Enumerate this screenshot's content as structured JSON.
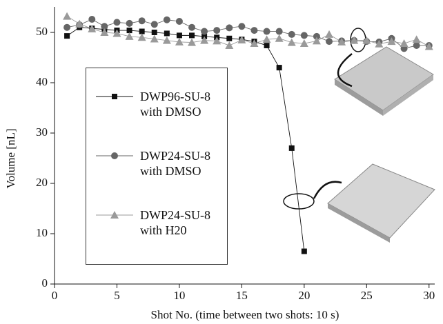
{
  "chart_data": {
    "type": "line",
    "xlabel": "Shot No. (time between two shots: 10 s)",
    "ylabel": "Volume [nL]",
    "xlim": [
      0,
      30.4
    ],
    "ylim": [
      0,
      55
    ],
    "xticks": [
      0,
      5,
      10,
      15,
      20,
      25,
      30
    ],
    "yticks": [
      0,
      10,
      20,
      30,
      40,
      50
    ],
    "legend": "left",
    "series": [
      {
        "name": "DWP96-SU-8 with DMSO",
        "color": "#111111",
        "marker": "square",
        "x": [
          1,
          2,
          3,
          4,
          5,
          6,
          7,
          8,
          9,
          10,
          11,
          12,
          13,
          14,
          15,
          16,
          17,
          18,
          19,
          20
        ],
        "values": [
          49.3,
          51.0,
          50.8,
          50.6,
          50.4,
          50.4,
          50.2,
          50.0,
          49.8,
          49.4,
          49.4,
          49.2,
          49.0,
          48.8,
          48.6,
          48.2,
          47.4,
          43,
          27,
          6.5
        ]
      },
      {
        "name": "DWP24-SU-8 with DMSO",
        "color": "#666666",
        "marker": "circle",
        "x": [
          1,
          2,
          3,
          4,
          5,
          6,
          7,
          8,
          9,
          10,
          11,
          12,
          13,
          14,
          15,
          16,
          17,
          18,
          19,
          20,
          21,
          22,
          23,
          24,
          25,
          26,
          27,
          28,
          29,
          30
        ],
        "values": [
          51,
          51.5,
          52.6,
          51.2,
          52,
          51.8,
          52.3,
          51.6,
          52.5,
          52.2,
          51,
          50.2,
          50.4,
          50.9,
          51.2,
          50.4,
          50.2,
          50.2,
          49.6,
          49.4,
          49.2,
          48.2,
          48.3,
          48.4,
          48.2,
          48.1,
          48.8,
          46.8,
          47.4,
          47.4
        ]
      },
      {
        "name": "DWP24-SU-8 with H20",
        "color": "#9a9a9a",
        "marker": "triangle",
        "x": [
          1,
          2,
          3,
          4,
          5,
          6,
          7,
          8,
          9,
          10,
          11,
          12,
          13,
          14,
          15,
          16,
          17,
          18,
          19,
          20,
          21,
          22,
          23,
          24,
          25,
          26,
          27,
          28,
          29,
          30
        ],
        "values": [
          53.2,
          51.7,
          50.7,
          50,
          49.8,
          49.2,
          49,
          48.7,
          48.4,
          48.1,
          48,
          48.4,
          48.3,
          47.4,
          48.5,
          47.8,
          48.6,
          48.8,
          48,
          47.8,
          48.3,
          49.6,
          48.1,
          48.4,
          48.4,
          47.7,
          48.2,
          47.8,
          48.6,
          47.2
        ]
      }
    ]
  }
}
